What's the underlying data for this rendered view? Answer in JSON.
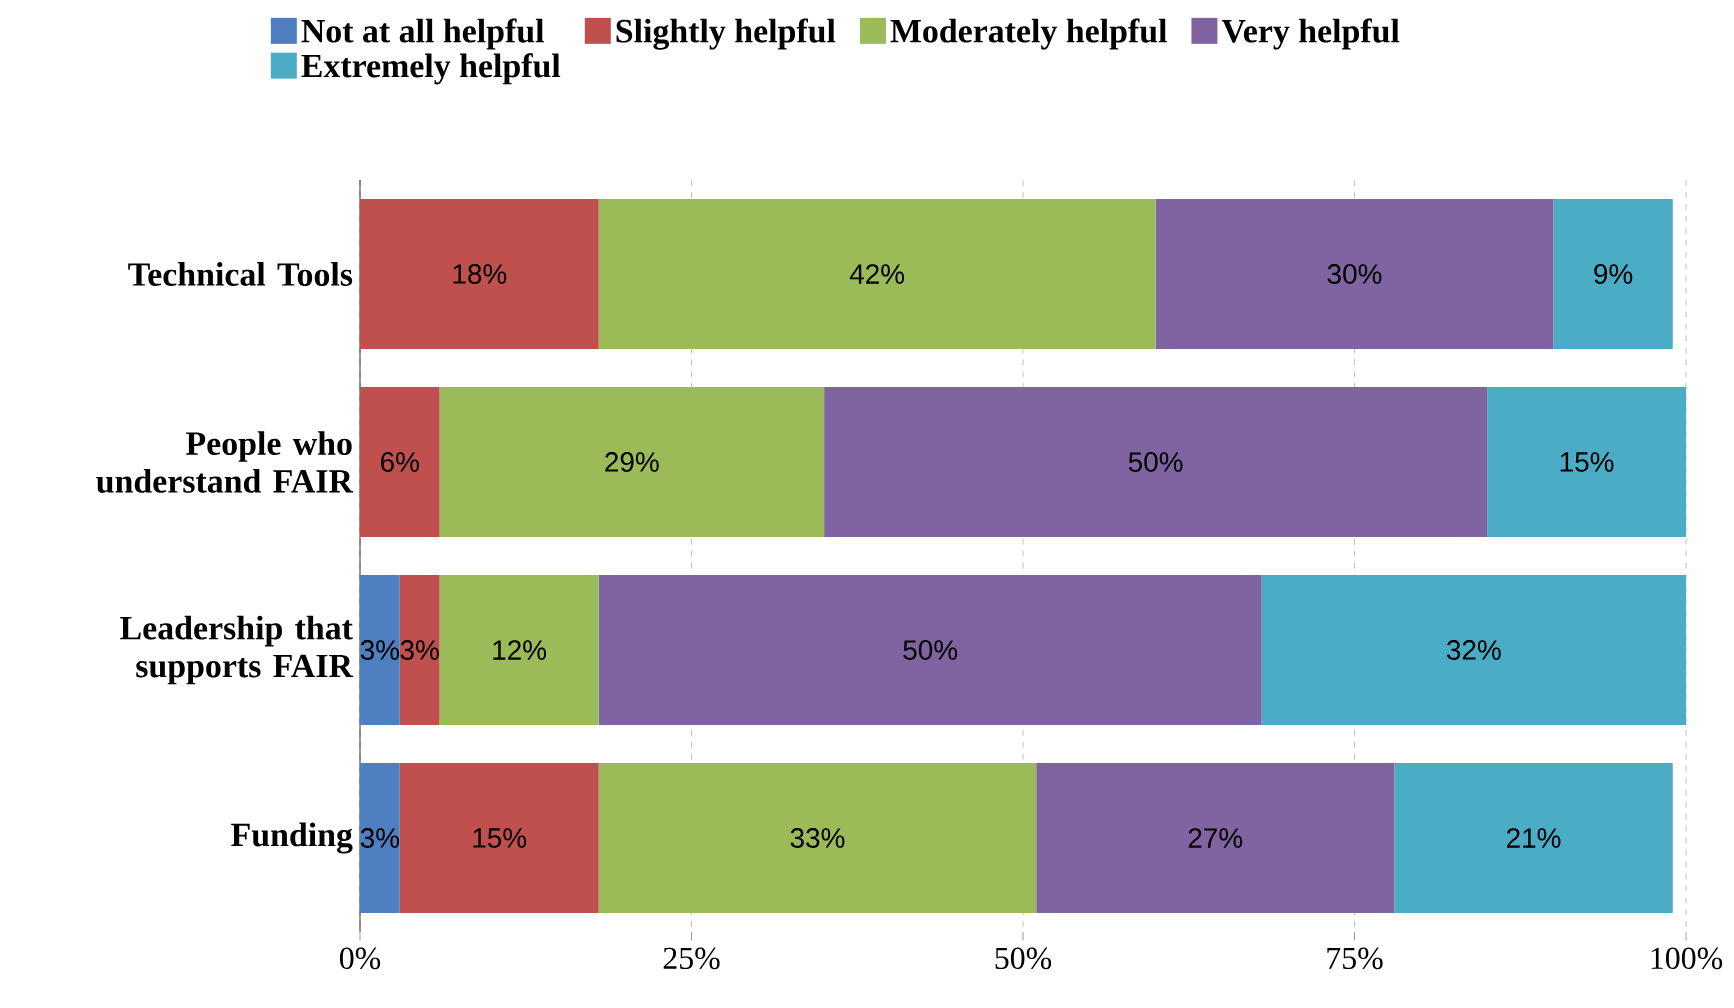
{
  "chart_data": {
    "type": "bar",
    "orientation": "horizontal",
    "stacked": true,
    "categories": [
      "Technical Tools",
      "People who understand FAIR",
      "Leadership that supports FAIR",
      "Funding"
    ],
    "series": [
      {
        "name": "Not at all helpful",
        "color": "#4e7fc1",
        "values": [
          null,
          null,
          3,
          3
        ],
        "value_labels": [
          null,
          null,
          "3%",
          "3%"
        ]
      },
      {
        "name": "Slightly helpful",
        "color": "#c0504d",
        "values": [
          18,
          6,
          3,
          15
        ],
        "value_labels": [
          "18%",
          "6%",
          "3%",
          "15%"
        ]
      },
      {
        "name": "Moderately helpful",
        "color": "#9bbb59",
        "values": [
          42,
          29,
          12,
          33
        ],
        "value_labels": [
          "42%",
          "29%",
          "12%",
          "33%"
        ]
      },
      {
        "name": "Very helpful",
        "color": "#8064a2",
        "values": [
          30,
          50,
          50,
          27
        ],
        "value_labels": [
          "30%",
          "50%",
          "50%",
          "27%"
        ]
      },
      {
        "name": "Extremely helpful",
        "color": "#4bacc6",
        "values": [
          9,
          15,
          32,
          21
        ],
        "value_labels": [
          "9%",
          "15%",
          "32%",
          "21%"
        ]
      }
    ],
    "xlim": [
      0,
      100
    ],
    "xticks": [
      {
        "value": 0,
        "label": "0%"
      },
      {
        "value": 25,
        "label": "25%"
      },
      {
        "value": 50,
        "label": "50%"
      },
      {
        "value": 75,
        "label": "75%"
      },
      {
        "value": 100,
        "label": "100%"
      }
    ],
    "grid": "x",
    "legend": "top"
  }
}
